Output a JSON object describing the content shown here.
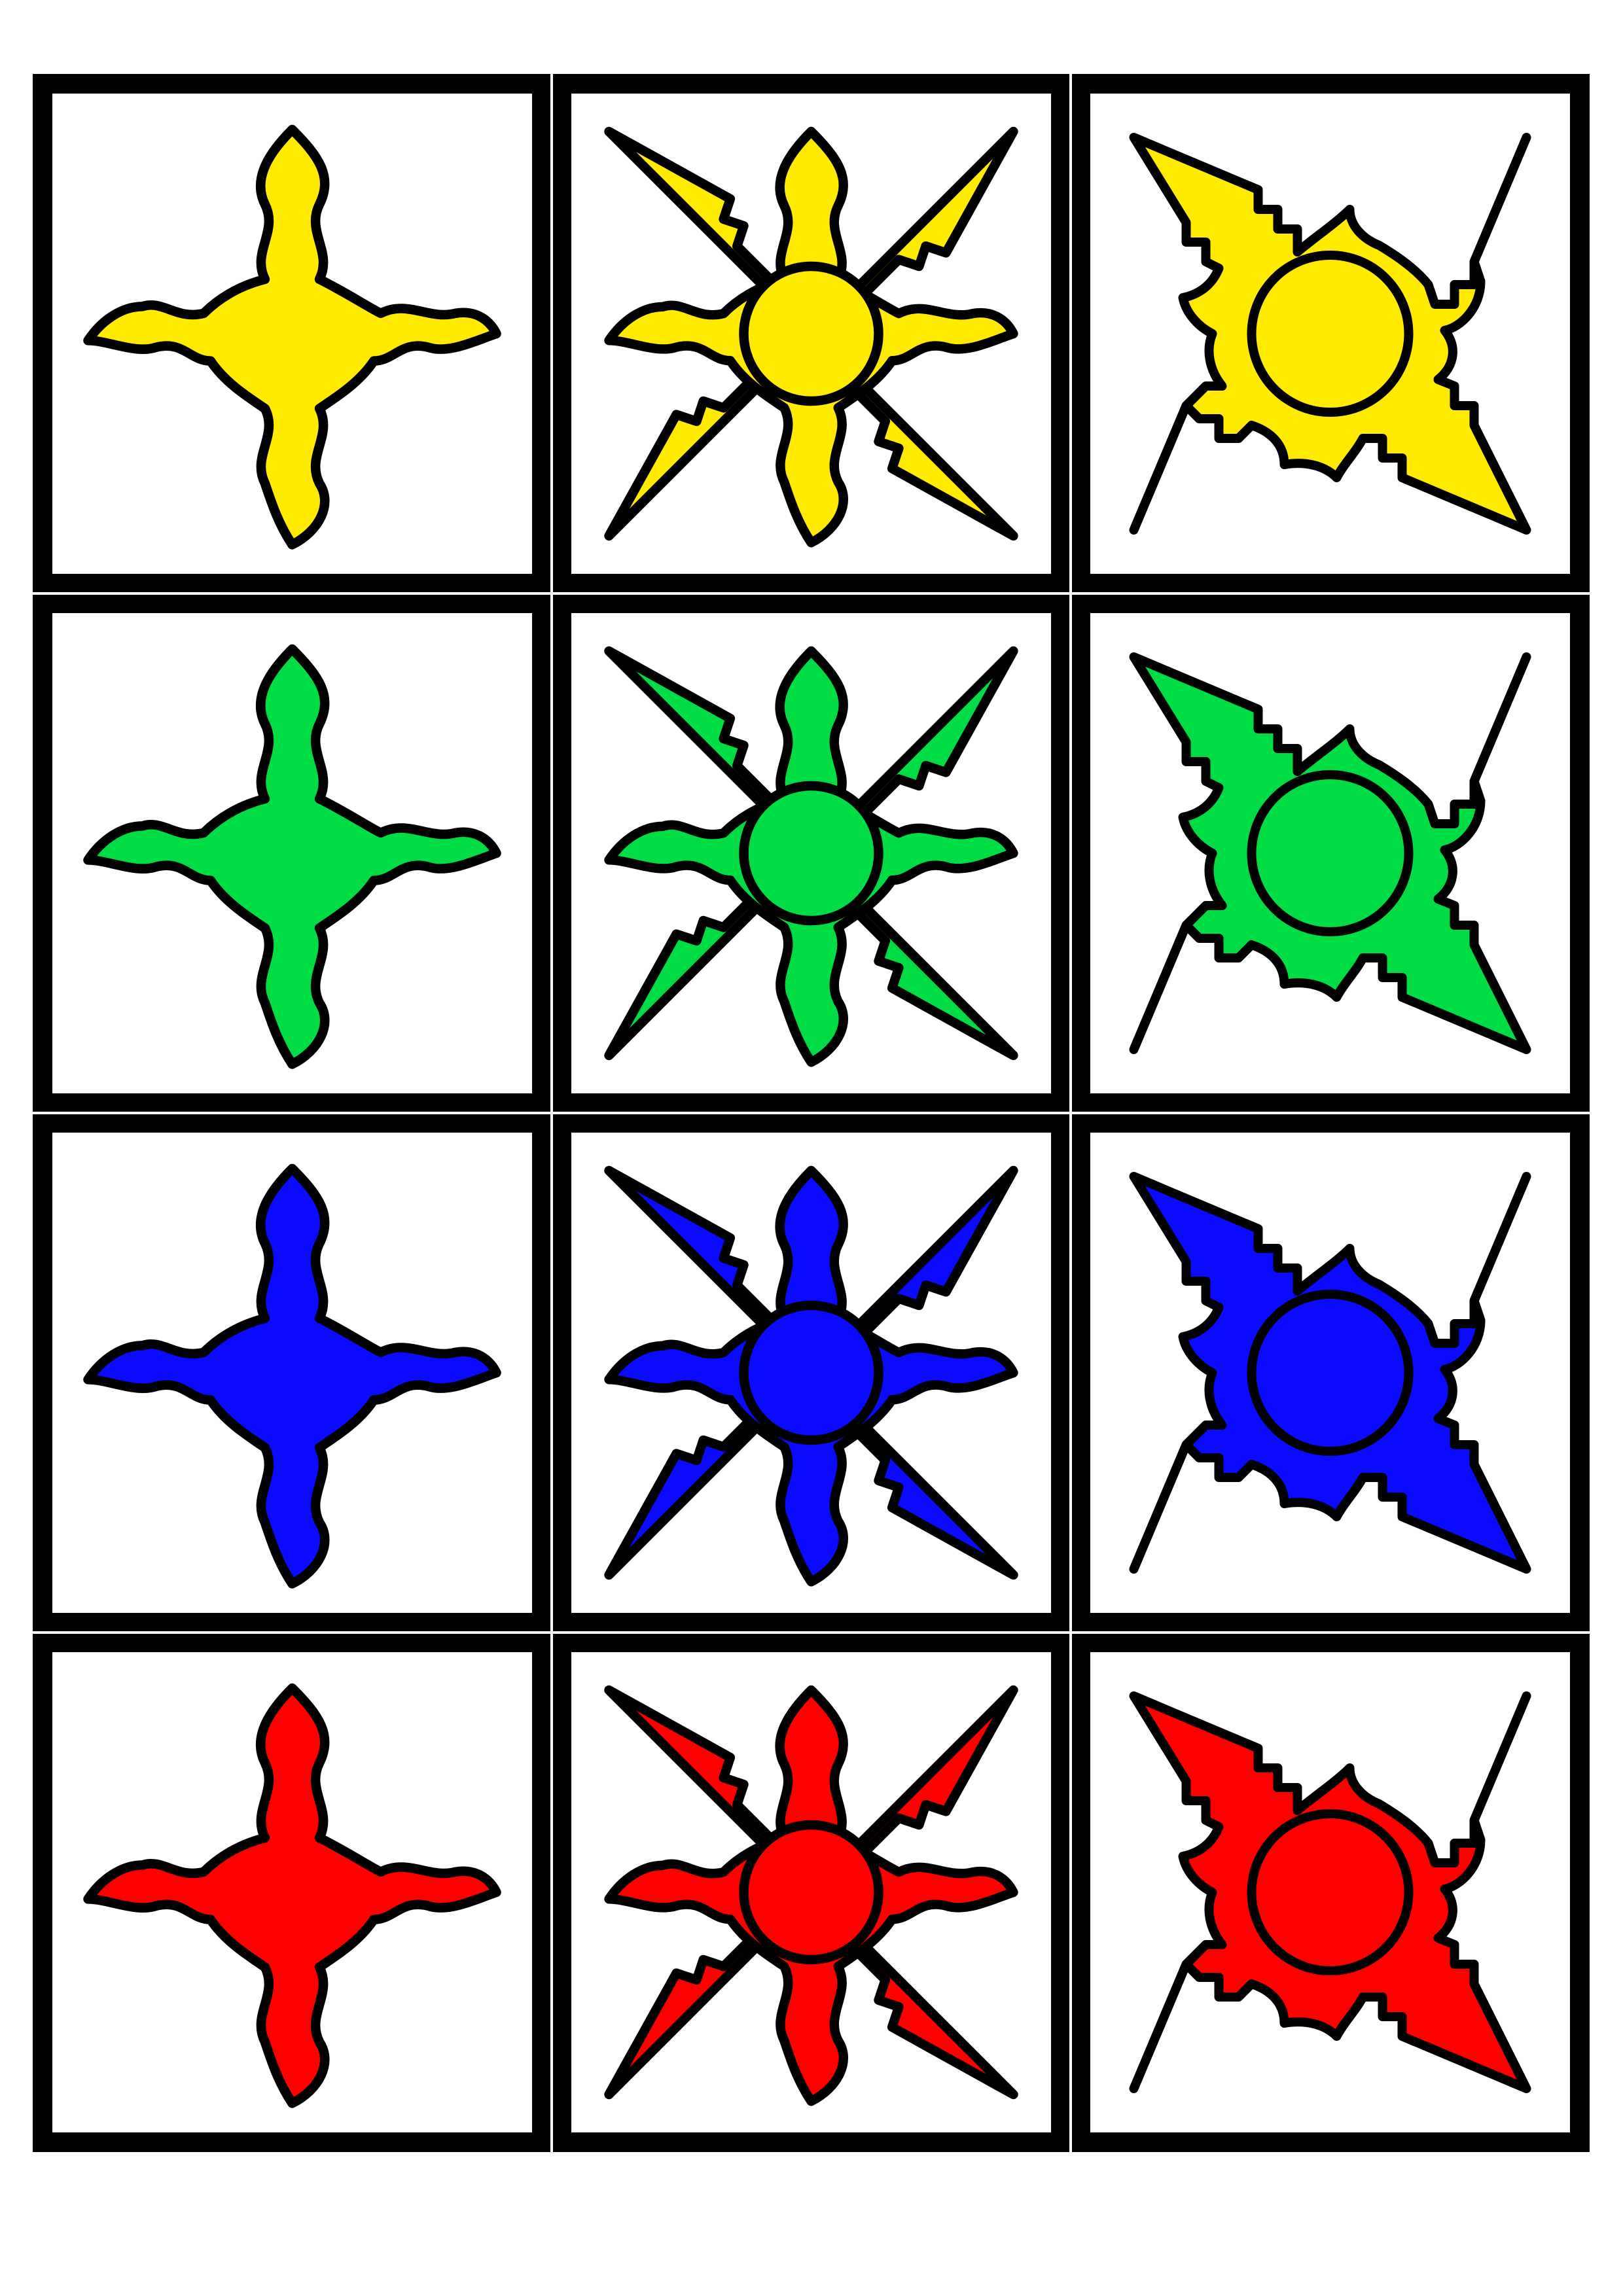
{
  "colors": {
    "yellow": "#ffeb00",
    "green": "#00dd44",
    "blue": "#0a0aff",
    "red": "#ff0000",
    "outline": "#000000",
    "card_background": "#ffffff"
  },
  "grid": {
    "rows": [
      {
        "color_name": "yellow",
        "fill": "#ffeb00"
      },
      {
        "color_name": "green",
        "fill": "#00dd44"
      },
      {
        "color_name": "blue",
        "fill": "#0a0aff"
      },
      {
        "color_name": "red",
        "fill": "#ff0000"
      }
    ],
    "columns": [
      {
        "emblem": "four-flame-star-icon"
      },
      {
        "emblem": "eight-point-flame-star-icon"
      },
      {
        "emblem": "four-blade-shuriken-icon"
      }
    ]
  }
}
